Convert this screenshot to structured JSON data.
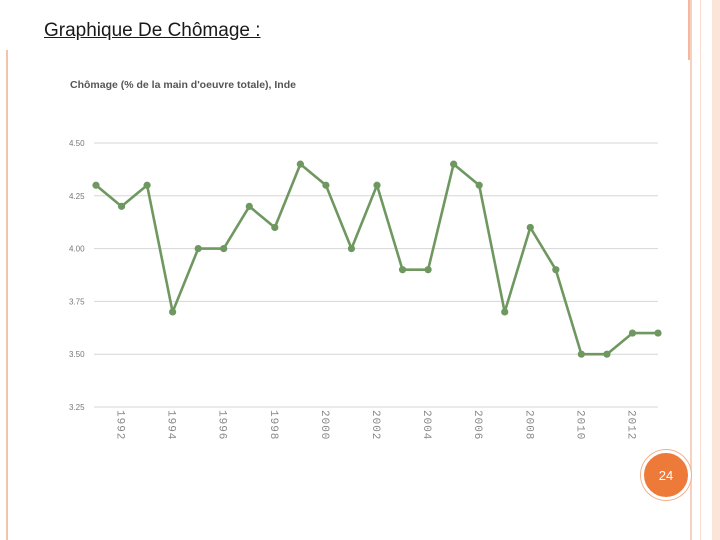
{
  "slide": {
    "title": "Graphique De  Chômage :",
    "page_number": "24"
  },
  "colors": {
    "line": "#6e9860",
    "grid": "#d6d6d6",
    "badge": "#ee7a3a",
    "border": "#f3c3ad"
  },
  "chart_data": {
    "type": "line",
    "title": "Chômage (% de la main d'oeuvre totale), Inde",
    "xlabel": "",
    "ylabel": "",
    "x": [
      1991,
      1992,
      1993,
      1994,
      1995,
      1996,
      1997,
      1998,
      1999,
      2000,
      2001,
      2002,
      2003,
      2004,
      2005,
      2006,
      2007,
      2008,
      2009,
      2010,
      2011,
      2012,
      2013
    ],
    "series": [
      {
        "values": [
          4.3,
          4.2,
          4.3,
          3.7,
          4.0,
          4.0,
          4.2,
          4.1,
          4.4,
          4.3,
          4.0,
          4.3,
          3.9,
          3.9,
          4.4,
          4.3,
          3.7,
          4.1,
          3.9,
          3.5,
          3.5,
          3.6,
          3.6
        ]
      }
    ],
    "ylim": [
      3.25,
      4.5
    ],
    "yticks": [
      "4.50",
      "4.25",
      "4.00",
      "3.75",
      "3.50",
      "3.25"
    ],
    "ytick_values": [
      4.5,
      4.25,
      4.0,
      3.75,
      3.5,
      3.25
    ],
    "xtick_labels": [
      "1992",
      "1994",
      "1996",
      "1998",
      "2000",
      "2002",
      "2004",
      "2006",
      "2008",
      "2010",
      "2012"
    ],
    "xtick_values": [
      1992,
      1994,
      1996,
      1998,
      2000,
      2002,
      2004,
      2006,
      2008,
      2010,
      2012
    ],
    "grid": true
  }
}
